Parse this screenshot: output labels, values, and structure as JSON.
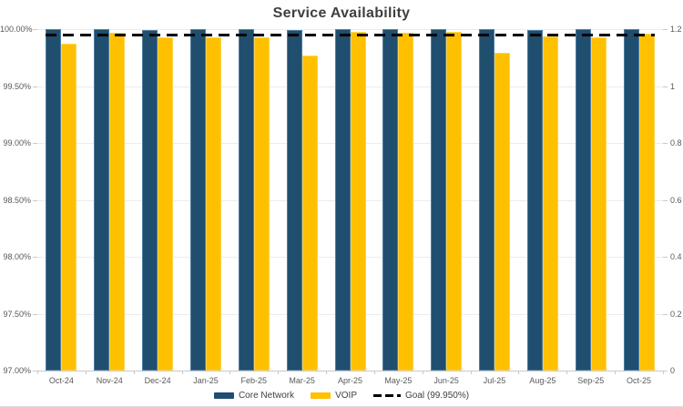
{
  "chart_data": {
    "type": "bar",
    "title": "Service Availability",
    "categories": [
      "Oct-24",
      "Nov-24",
      "Dec-24",
      "Jan-25",
      "Feb-25",
      "Mar-25",
      "Apr-25",
      "May-25",
      "Jun-25",
      "Jul-25",
      "Aug-25",
      "Sep-25",
      "Oct-25"
    ],
    "series": [
      {
        "name": "Core Network",
        "color": "#1f4e6e",
        "border_color": "#4e7ca1",
        "values": [
          100.0,
          100.0,
          99.99,
          100.0,
          100.0,
          99.99,
          100.0,
          100.0,
          100.0,
          100.0,
          99.99,
          100.0,
          100.0
        ]
      },
      {
        "name": "VOIP",
        "color": "#ffc000",
        "border_color": "#ffd34d",
        "values": [
          99.87,
          99.97,
          99.93,
          99.93,
          99.93,
          99.77,
          99.98,
          99.97,
          99.98,
          99.79,
          99.94,
          99.93,
          99.96
        ]
      }
    ],
    "goal_line": {
      "label": "Goal (99.950%)",
      "value": 99.95,
      "color": "#000000",
      "style": "dashed"
    },
    "left_axis": {
      "min": 97,
      "max": 100,
      "tick_labels": [
        "100.00%",
        "99.50%",
        "99.00%",
        "98.50%",
        "98.00%",
        "97.50%",
        "97.00%"
      ]
    },
    "right_axis": {
      "min": 0,
      "max": 1.2,
      "tick_labels": [
        "1.2",
        "1",
        "0.8",
        "0.6",
        "0.4",
        "0.2",
        "0"
      ]
    },
    "legend_position": "bottom",
    "grid": true
  },
  "colors": {
    "title_text": "#3f3f3f",
    "axis_text": "#595959",
    "gridline": "#ececec",
    "axis_line": "#c9c9c9",
    "background": "#ffffff"
  }
}
